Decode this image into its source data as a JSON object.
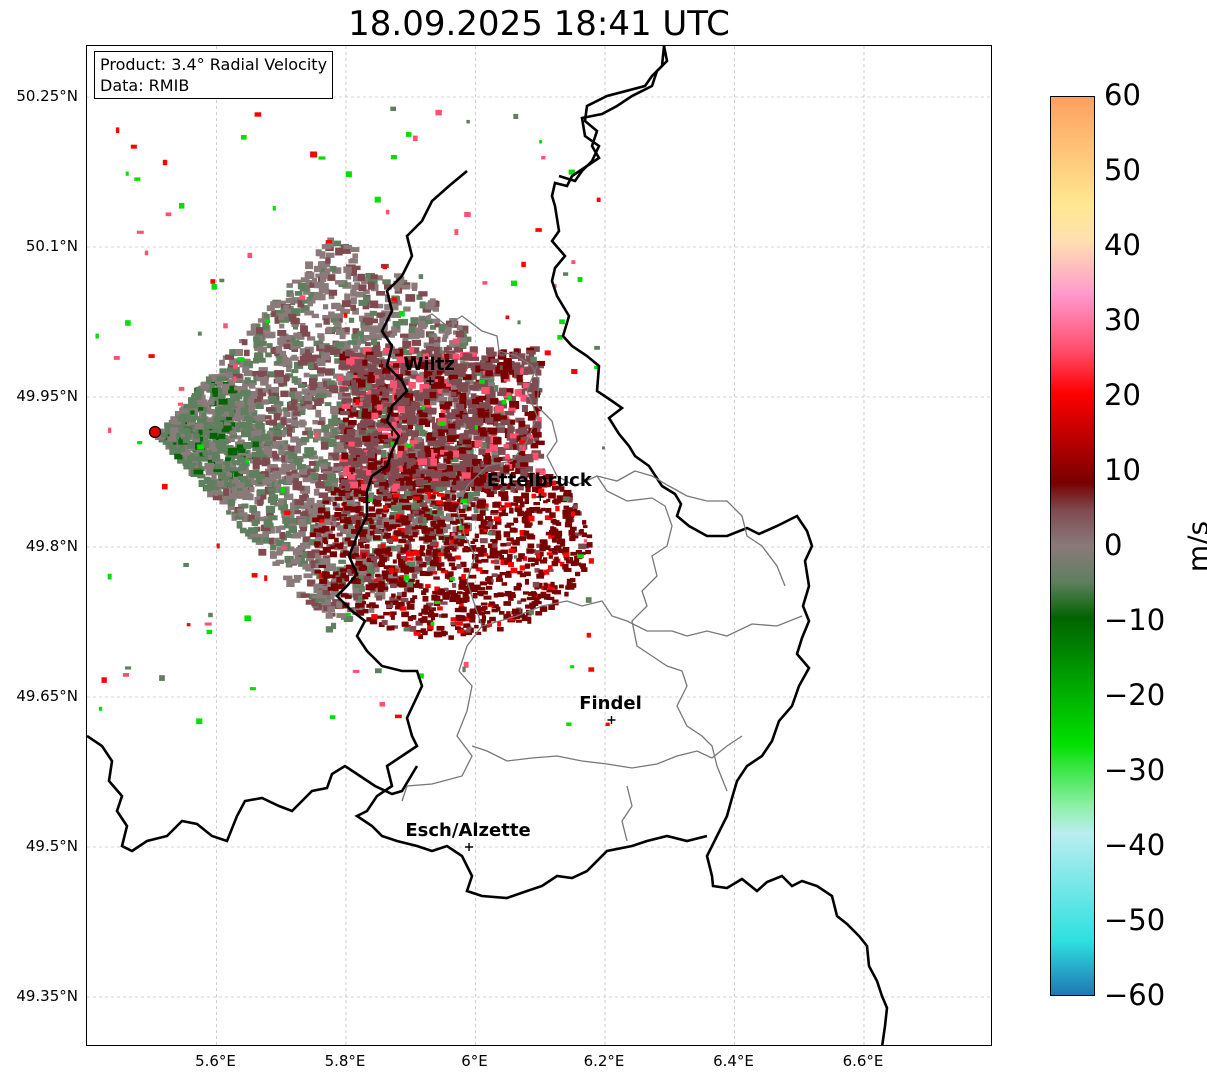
{
  "title": "18.09.2025 18:41 UTC",
  "info": {
    "product": "Product: 3.4° Radial Velocity",
    "data": "Data: RMIB"
  },
  "lat_ticks": [
    "50.25°N",
    "50.1°N",
    "49.95°N",
    "49.8°N",
    "49.65°N",
    "49.5°N",
    "49.35°N"
  ],
  "lon_ticks": [
    "5.6°E",
    "5.8°E",
    "6°E",
    "6.2°E",
    "6.4°E",
    "6.6°E"
  ],
  "cities": [
    {
      "name": "Wiltz",
      "lon": 5.93,
      "lat": 49.966
    },
    {
      "name": "Ettelbruck",
      "lon": 6.1,
      "lat": 49.85
    },
    {
      "name": "Findel",
      "lon": 6.21,
      "lat": 49.627
    },
    {
      "name": "Esch/Alzette",
      "lon": 5.99,
      "lat": 49.5
    }
  ],
  "radar_site": {
    "lon": 5.505,
    "lat": 49.915
  },
  "colorbar": {
    "unit": "m/s",
    "ticks": [
      "60",
      "50",
      "40",
      "30",
      "20",
      "10",
      "0",
      "−10",
      "−20",
      "−30",
      "−40",
      "−50",
      "−60"
    ],
    "range": [
      -60,
      60
    ],
    "colors": {
      "neg_deep": "#1f77b4",
      "neg_cyan": "#2ee0e0",
      "neg_light": "#b9eef0",
      "neg_green_light": "#8ef0a8",
      "neg_green": "#00e000",
      "neg_green_dark": "#006400",
      "zero_gray_green": "#5f7f5f",
      "zero_gray": "#8a7a7a",
      "pos_maroon_gray": "#7f4a50",
      "pos_maroon": "#780000",
      "pos_red": "#ff0000",
      "pos_pink": "#ff5070",
      "pos_light_pink": "#ff99cc",
      "pos_beige": "#ffe0b0",
      "pos_yellow": "#ffe890",
      "pos_orange": "#ffa060"
    }
  }
}
